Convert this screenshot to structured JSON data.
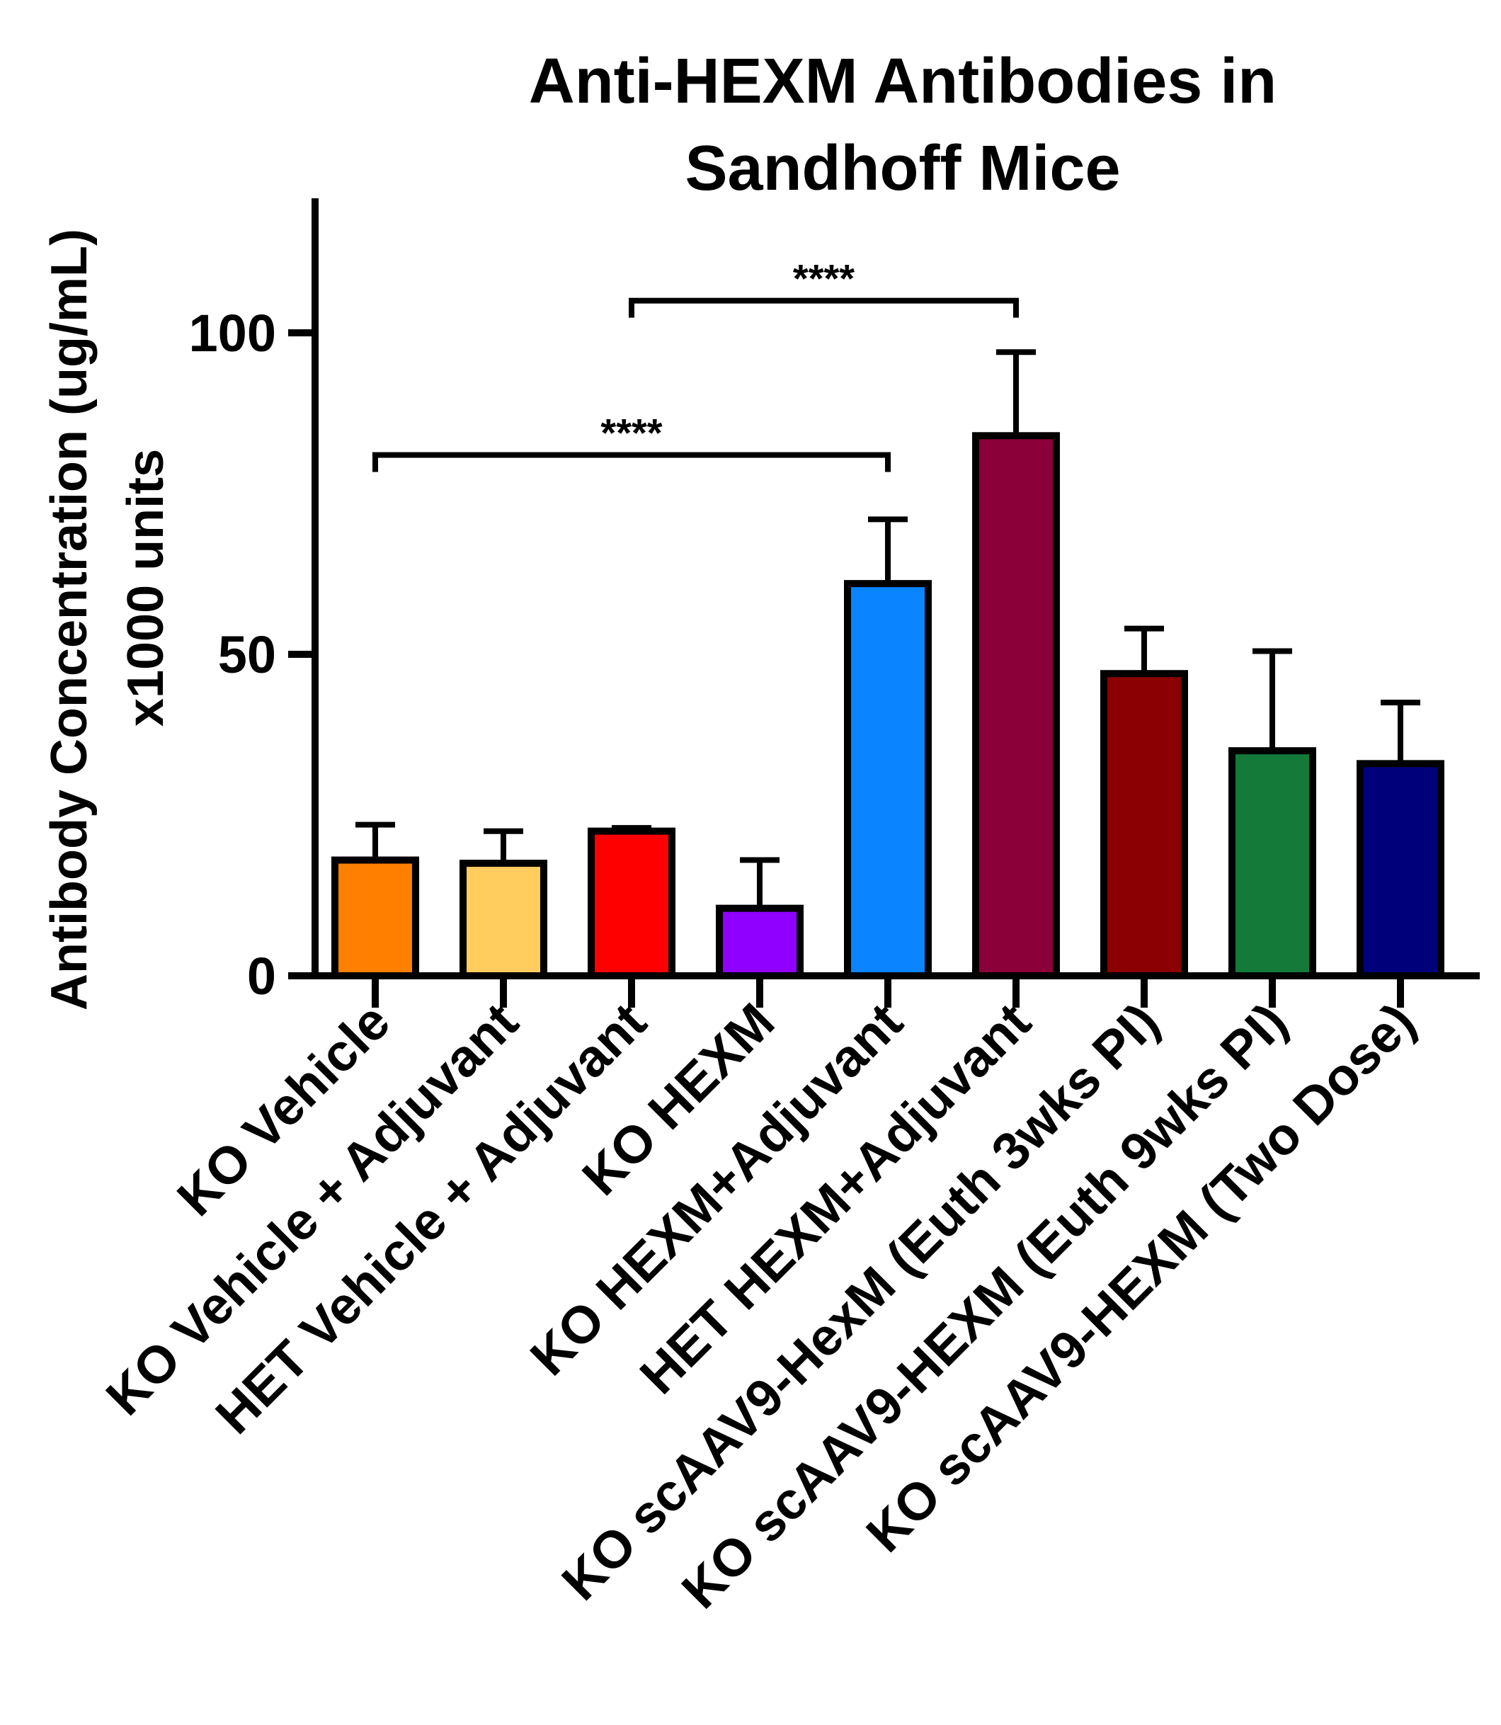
{
  "chart_data": {
    "type": "bar",
    "title": [
      "Anti-HEXM Antibodies in",
      "Sandhoff Mice"
    ],
    "ylabel": [
      "Antibody Concentration (ug/mL)",
      "x1000 units"
    ],
    "xlabel": "",
    "ylim": [
      0,
      120
    ],
    "yticks": [
      0,
      50,
      100
    ],
    "categories": [
      "KO Vehicle",
      "KO Vehicle + Adjuvant",
      "HET Vehicle + Adjuvant",
      "KO HEXM",
      "KO HEXM+Adjuvant",
      "HET HEXM+Adjuvant",
      "KO scAAV9-HexM (Euth 3wks PI)",
      "KO scAAV9-HEXM (Euth 9wks PI)",
      "KO scAAV9-HEXM (Two Dose)"
    ],
    "values": [
      18,
      17.5,
      22.5,
      10.5,
      61,
      84,
      47,
      35,
      33
    ],
    "errors": [
      5.5,
      5,
      0.5,
      7.5,
      10,
      13,
      7,
      15.5,
      9.5
    ],
    "colors": [
      "#ff8000",
      "#ffcc5e",
      "#ff0000",
      "#9000ff",
      "#0a84ff",
      "#8b0039",
      "#8b0000",
      "#137a3a",
      "#00007a"
    ],
    "significance": [
      {
        "from": 0,
        "to": 4,
        "label": "****",
        "y": 81
      },
      {
        "from": 2,
        "to": 5,
        "label": "****",
        "y": 105
      }
    ],
    "grid": false,
    "legend": "none"
  }
}
